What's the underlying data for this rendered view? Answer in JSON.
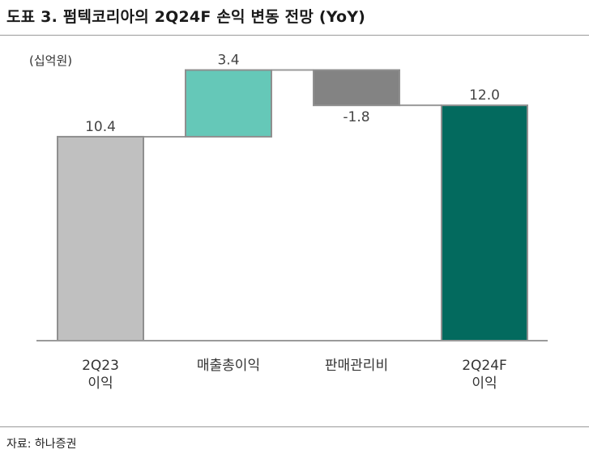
{
  "header": {
    "title": "도표 3. 펌텍코리아의 2Q24F 손익 변동 전망 (YoY)"
  },
  "footer": {
    "source": "자료: 하나증권"
  },
  "chart_data": {
    "type": "waterfall",
    "unit_label": "(십억원)",
    "steps": [
      {
        "label_lines": [
          "2Q23",
          "이익"
        ],
        "value": 10.4,
        "display": "10.4",
        "kind": "total",
        "color": "#c0c0c0"
      },
      {
        "label_lines": [
          "매출총이익"
        ],
        "value": 3.4,
        "display": "3.4",
        "kind": "delta",
        "color": "#65c8b8"
      },
      {
        "label_lines": [
          "판매관리비"
        ],
        "value": -1.8,
        "display": "-1.8",
        "kind": "delta",
        "color": "#838383"
      },
      {
        "label_lines": [
          "2Q24F",
          "이익"
        ],
        "value": 12.0,
        "display": "12.0",
        "kind": "total",
        "color": "#036a5e"
      }
    ],
    "ylim": [
      0,
      14.4
    ],
    "grid": false,
    "legend": "none",
    "connector_color": "#9a9a9a"
  }
}
